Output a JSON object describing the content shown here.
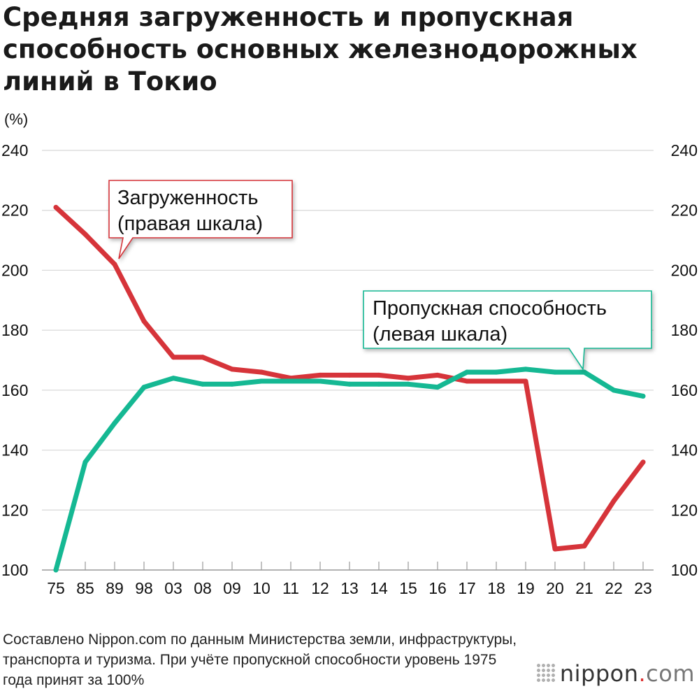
{
  "title": "Средняя загруженность и пропускная способность основных железнодорожных линий в Токио",
  "unit_label": "(%)",
  "source_note": "Составлено Nippon.com по данным Министерства земли, инфраструктуры, транспорта и туризма. При учёте пропускной способности уровень 1975 года принят за 100%",
  "logo": {
    "name": "nippon",
    "dot": ".",
    "tld": "com"
  },
  "colors": {
    "congestion": "#d6343a",
    "capacity": "#15b893",
    "grid": "#d8d8d8"
  },
  "chart_data": {
    "type": "line",
    "categories": [
      "75",
      "85",
      "89",
      "98",
      "03",
      "08",
      "09",
      "10",
      "11",
      "12",
      "13",
      "14",
      "15",
      "16",
      "17",
      "18",
      "19",
      "20",
      "21",
      "22",
      "23"
    ],
    "ylim": [
      100,
      240
    ],
    "y_ticks": [
      100,
      120,
      140,
      160,
      180,
      200,
      220,
      240
    ],
    "grid": true,
    "series": [
      {
        "key": "congestion",
        "name": "Загруженность (правая шкала)",
        "label_line1": "Загруженность",
        "label_line2": "(правая шкала)",
        "axis": "right",
        "values": [
          221,
          212,
          202,
          183,
          171,
          171,
          167,
          166,
          164,
          165,
          165,
          165,
          164,
          165,
          163,
          163,
          163,
          107,
          108,
          123,
          136
        ]
      },
      {
        "key": "capacity",
        "name": "Пропускная способность (левая шкала)",
        "label_line1": "Пропускная способность",
        "label_line2": "(левая шкала)",
        "axis": "left",
        "values": [
          100,
          136,
          149,
          161,
          164,
          162,
          162,
          163,
          163,
          163,
          162,
          162,
          162,
          161,
          166,
          166,
          167,
          166,
          166,
          160,
          158
        ]
      }
    ]
  }
}
